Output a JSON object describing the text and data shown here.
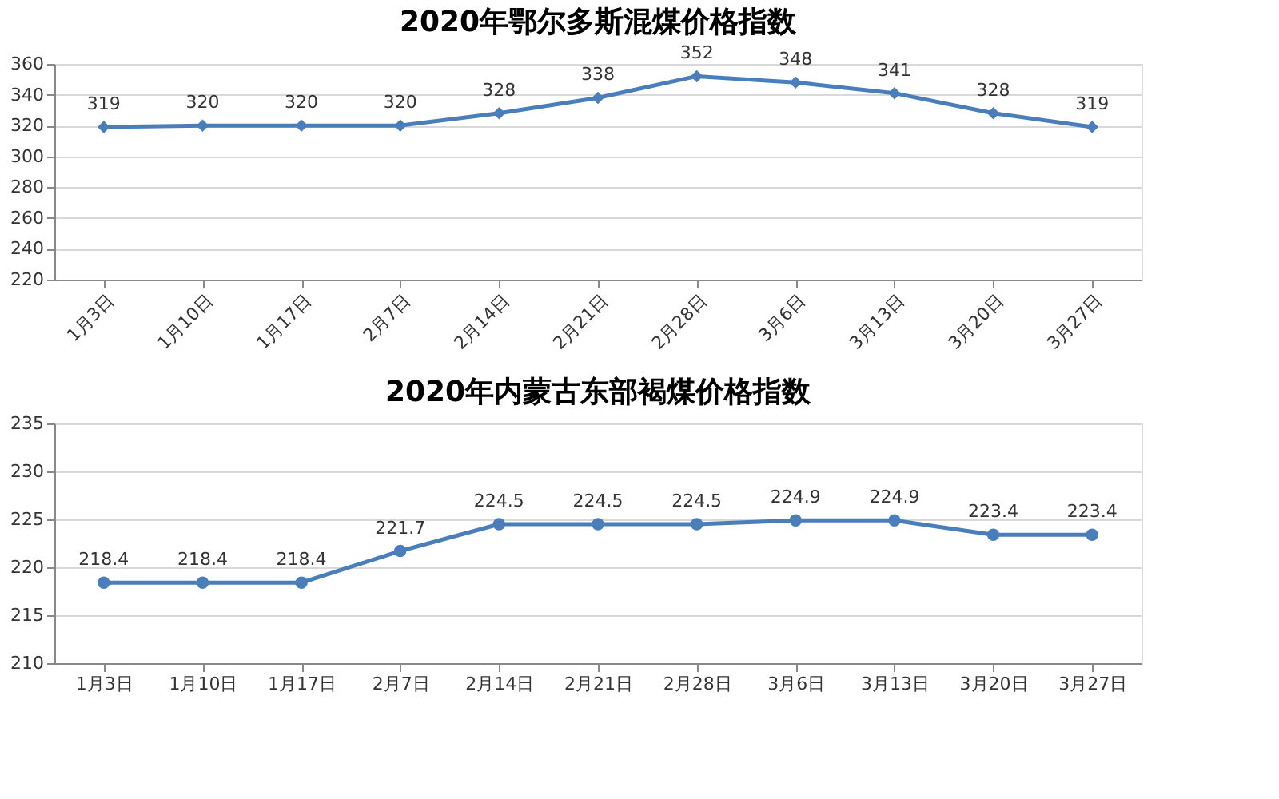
{
  "chart_data": [
    {
      "type": "line",
      "title": "2020年鄂尔多斯混煤价格指数",
      "categories": [
        "1月3日",
        "1月10日",
        "1月17日",
        "2月7日",
        "2月14日",
        "2月21日",
        "2月28日",
        "3月6日",
        "3月13日",
        "3月20日",
        "3月27日"
      ],
      "values": [
        319,
        320,
        320,
        320,
        328,
        338,
        352,
        348,
        341,
        328,
        319
      ],
      "color": "#4a7ebb",
      "ylim": [
        220,
        360
      ],
      "yticks": [
        220,
        240,
        260,
        280,
        300,
        320,
        340,
        360
      ],
      "grid": "y",
      "marker": "diamond",
      "data_labels": true
    },
    {
      "type": "line",
      "title": "2020年内蒙古东部褐煤价格指数",
      "categories": [
        "1月3日",
        "1月10日",
        "1月17日",
        "2月7日",
        "2月14日",
        "2月21日",
        "2月28日",
        "3月6日",
        "3月13日",
        "3月20日",
        "3月27日"
      ],
      "values": [
        218.4,
        218.4,
        218.4,
        221.7,
        224.5,
        224.5,
        224.5,
        224.9,
        224.9,
        223.4,
        223.4
      ],
      "color": "#4a7ebb",
      "ylim": [
        210,
        235
      ],
      "yticks": [
        210,
        215,
        220,
        225,
        230,
        235
      ],
      "grid": "y",
      "marker": "circle",
      "data_labels": true
    }
  ]
}
